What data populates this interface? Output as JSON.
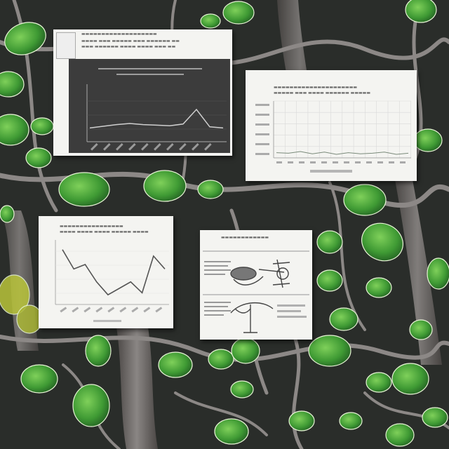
{
  "scene": {
    "description_free": true,
    "colors": {
      "foliage": "#4caa3a",
      "foliage_dark": "#2f6d2a",
      "bark": "#6e6a68",
      "ground": "#2b2e2a",
      "paper": "#f4f4f1"
    },
    "cards": [
      {
        "kind": "dark-line-chart",
        "series_shape": [
          0.22,
          0.25,
          0.28,
          0.3,
          0.28,
          0.27,
          0.26,
          0.29,
          0.55,
          0.24,
          0.22
        ]
      },
      {
        "kind": "grid-chart",
        "series_shape": [
          0.08,
          0.07,
          0.1,
          0.06,
          0.09,
          0.05,
          0.08,
          0.06,
          0.07,
          0.09,
          0.05,
          0.07
        ]
      },
      {
        "kind": "line-chart",
        "series_shape": [
          0.85,
          0.55,
          0.62,
          0.35,
          0.15,
          0.25,
          0.35,
          0.18,
          0.75,
          0.55
        ]
      },
      {
        "kind": "illustration-sheet"
      }
    ]
  }
}
